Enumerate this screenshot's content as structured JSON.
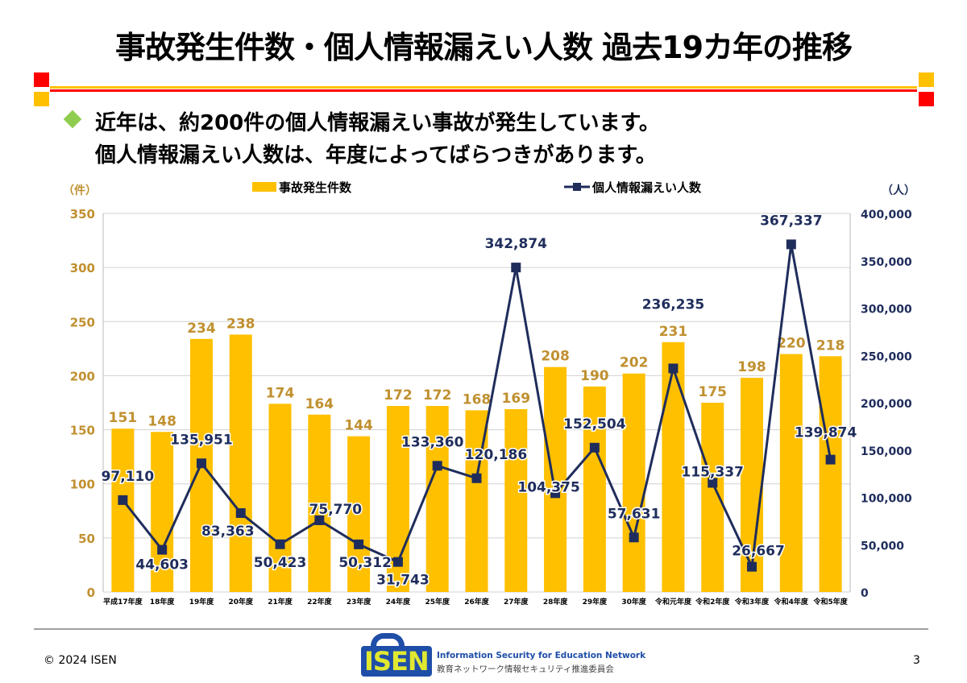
{
  "title": "事故発生件数・個人情報漏えい人数 過去19カ年の推移",
  "bullets": [
    "近年は、約200件の個人情報漏えい事故が発生しています。",
    "個人情報漏えい人数は、年度によってばらつきがあります。"
  ],
  "footer": {
    "copyright": "© 2024 ISEN",
    "page": "3",
    "logo_text": "ISEN",
    "logo_en": "Information Security for Education Network",
    "logo_jp": "教育ネットワーク情報セキュリティ推進委員会"
  },
  "colors": {
    "bar": "#ffc000",
    "line": "#1f2d5c",
    "bar_label": "#c09030",
    "red": "#ff0000",
    "yellow": "#ffc000"
  },
  "chart_data": {
    "type": "bar+line",
    "left_unit": "（件）",
    "right_unit": "（人）",
    "categories": [
      "平成17年度",
      "18年度",
      "19年度",
      "20年度",
      "21年度",
      "22年度",
      "23年度",
      "24年度",
      "25年度",
      "26年度",
      "27年度",
      "28年度",
      "29年度",
      "30年度",
      "令和元年度",
      "令和2年度",
      "令和3年度",
      "令和4年度",
      "令和5年度"
    ],
    "series": [
      {
        "name": "事故発生件数",
        "type": "bar",
        "axis": "left",
        "values": [
          151,
          148,
          234,
          238,
          174,
          164,
          144,
          172,
          172,
          168,
          169,
          208,
          190,
          202,
          231,
          175,
          198,
          220,
          218
        ]
      },
      {
        "name": "個人情報漏えい人数",
        "type": "line",
        "axis": "right",
        "values": [
          97110,
          44603,
          135951,
          83363,
          50423,
          75770,
          50312,
          31743,
          133360,
          120186,
          342874,
          104375,
          152504,
          57631,
          236235,
          115337,
          26667,
          367337,
          139874
        ]
      }
    ],
    "left_ylim": [
      0,
      350
    ],
    "left_ticks": [
      0,
      50,
      100,
      150,
      200,
      250,
      300,
      350
    ],
    "right_ylim": [
      0,
      400000
    ],
    "right_ticks": [
      "0",
      "50,000",
      "100,000",
      "150,000",
      "200,000",
      "250,000",
      "300,000",
      "350,000",
      "400,000"
    ],
    "grid": true,
    "legend": "top"
  }
}
